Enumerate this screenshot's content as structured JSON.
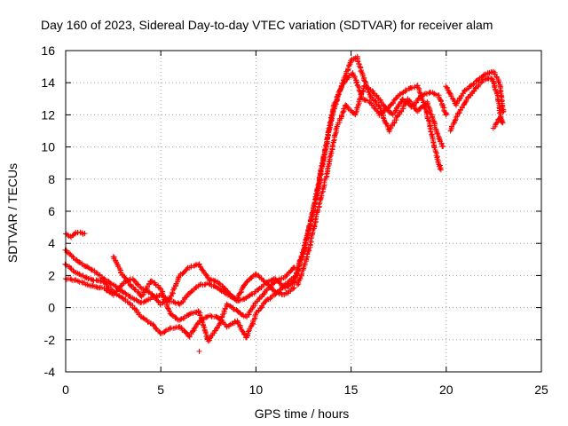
{
  "chart_data": {
    "type": "scatter",
    "title": "Day 160 of 2023, Sidereal Day-to-day VTEC variation (SDTVAR) for receiver alam",
    "xlabel": "GPS time / hours",
    "ylabel": "SDTVAR / TECUs",
    "xlim": [
      0,
      25
    ],
    "ylim": [
      -4,
      16
    ],
    "xticks": [
      0,
      5,
      10,
      15,
      20,
      25
    ],
    "yticks": [
      -4,
      -2,
      0,
      2,
      4,
      6,
      8,
      10,
      12,
      14,
      16
    ],
    "xtick_labels": [
      "0",
      "5",
      "10",
      "15",
      "20",
      "25"
    ],
    "ytick_labels": [
      "-4",
      "-2",
      "0",
      "2",
      "4",
      "6",
      "8",
      "10",
      "12",
      "14",
      "16"
    ],
    "grid": true,
    "marker": "+",
    "color": "#ff0000",
    "series": [
      {
        "name": "SDTVAR",
        "tracks": [
          [
            [
              0.0,
              4.6
            ],
            [
              0.3,
              4.4
            ],
            [
              0.6,
              4.7
            ],
            [
              1.0,
              4.6
            ]
          ],
          [
            [
              0.0,
              3.6
            ],
            [
              0.5,
              3.0
            ],
            [
              1.0,
              2.6
            ],
            [
              1.5,
              2.3
            ],
            [
              2.0,
              1.8
            ],
            [
              2.5,
              1.4
            ],
            [
              3.0,
              1.0
            ],
            [
              3.5,
              0.6
            ],
            [
              4.0,
              0.3
            ],
            [
              4.5,
              0.6
            ],
            [
              5.0,
              0.8
            ],
            [
              5.5,
              0.4
            ],
            [
              6.0,
              0.2
            ],
            [
              6.5,
              0.9
            ],
            [
              7.0,
              1.4
            ],
            [
              7.5,
              1.5
            ],
            [
              8.0,
              1.2
            ],
            [
              8.5,
              0.8
            ],
            [
              9.0,
              0.5
            ],
            [
              9.5,
              1.6
            ],
            [
              10.0,
              2.1
            ],
            [
              10.5,
              1.6
            ],
            [
              11.0,
              1.0
            ],
            [
              11.5,
              0.8
            ],
            [
              12.0,
              1.2
            ]
          ],
          [
            [
              0.0,
              2.7
            ],
            [
              0.5,
              2.2
            ],
            [
              1.0,
              1.9
            ],
            [
              1.5,
              1.7
            ],
            [
              2.0,
              1.6
            ],
            [
              2.5,
              1.0
            ],
            [
              3.0,
              0.6
            ],
            [
              3.5,
              0.1
            ],
            [
              4.0,
              -0.6
            ],
            [
              4.5,
              -1.0
            ],
            [
              5.0,
              -1.6
            ],
            [
              5.5,
              -1.3
            ],
            [
              6.0,
              -1.2
            ],
            [
              6.5,
              -1.8
            ],
            [
              7.0,
              -0.9
            ],
            [
              7.5,
              -0.5
            ],
            [
              8.0,
              -0.6
            ],
            [
              8.5,
              -1.2
            ],
            [
              9.0,
              -0.8
            ],
            [
              9.5,
              -1.9
            ],
            [
              10.0,
              -0.4
            ],
            [
              10.5,
              0.4
            ],
            [
              11.0,
              0.8
            ],
            [
              11.5,
              1.4
            ],
            [
              12.0,
              1.9
            ]
          ],
          [
            [
              0.0,
              1.8
            ],
            [
              0.5,
              1.7
            ],
            [
              1.0,
              1.5
            ],
            [
              1.5,
              1.3
            ],
            [
              2.0,
              1.2
            ],
            [
              2.5,
              0.8
            ],
            [
              3.0,
              1.5
            ],
            [
              3.5,
              1.8
            ],
            [
              4.0,
              1.2
            ],
            [
              4.5,
              0.9
            ],
            [
              5.0,
              0.2
            ],
            [
              5.5,
              0.6
            ],
            [
              6.0,
              2.0
            ],
            [
              6.5,
              2.5
            ],
            [
              7.0,
              2.7
            ],
            [
              7.5,
              1.8
            ],
            [
              8.0,
              1.6
            ],
            [
              8.5,
              1.0
            ],
            [
              9.0,
              0.4
            ],
            [
              9.5,
              0.6
            ],
            [
              10.0,
              1.0
            ],
            [
              10.5,
              1.5
            ],
            [
              11.0,
              1.8
            ],
            [
              11.5,
              1.2
            ],
            [
              12.0,
              1.6
            ]
          ],
          [
            [
              2.5,
              3.2
            ],
            [
              3.0,
              2.0
            ],
            [
              3.5,
              1.3
            ],
            [
              4.0,
              0.7
            ],
            [
              4.5,
              1.7
            ],
            [
              5.0,
              1.2
            ],
            [
              5.5,
              -0.4
            ],
            [
              6.0,
              -0.8
            ],
            [
              6.5,
              -0.4
            ],
            [
              7.0,
              -0.2
            ],
            [
              7.5,
              -2.1
            ],
            [
              8.0,
              -1.2
            ],
            [
              8.5,
              0.2
            ],
            [
              9.0,
              -0.2
            ],
            [
              9.5,
              -0.6
            ],
            [
              10.0,
              0.3
            ],
            [
              10.5,
              1.0
            ],
            [
              11.0,
              1.6
            ],
            [
              11.5,
              1.9
            ],
            [
              12.0,
              2.5
            ]
          ],
          [
            [
              12.0,
              1.5
            ],
            [
              12.5,
              3.5
            ],
            [
              13.0,
              6.0
            ],
            [
              13.5,
              9.0
            ],
            [
              14.0,
              12.0
            ],
            [
              14.5,
              13.8
            ],
            [
              15.0,
              15.4
            ],
            [
              15.3,
              15.6
            ],
            [
              15.6,
              14.5
            ],
            [
              16.0,
              13.2
            ],
            [
              16.5,
              12.5
            ],
            [
              17.0,
              11.0
            ],
            [
              17.5,
              12.0
            ],
            [
              18.0,
              13.0
            ],
            [
              18.5,
              12.2
            ],
            [
              19.0,
              12.8
            ],
            [
              19.5,
              11.0
            ],
            [
              19.8,
              10.0
            ]
          ],
          [
            [
              12.1,
              2.0
            ],
            [
              12.6,
              4.0
            ],
            [
              13.1,
              6.5
            ],
            [
              13.6,
              9.5
            ],
            [
              14.1,
              12.6
            ],
            [
              14.6,
              14.0
            ],
            [
              15.1,
              14.6
            ],
            [
              15.6,
              13.0
            ],
            [
              16.0,
              12.8
            ],
            [
              16.5,
              12.0
            ],
            [
              17.0,
              12.5
            ],
            [
              17.5,
              13.2
            ],
            [
              18.0,
              13.6
            ],
            [
              18.5,
              13.8
            ],
            [
              19.0,
              12.0
            ],
            [
              19.5,
              9.5
            ],
            [
              19.7,
              8.6
            ]
          ],
          [
            [
              12.2,
              1.4
            ],
            [
              12.7,
              3.2
            ],
            [
              13.2,
              5.8
            ],
            [
              13.7,
              8.2
            ],
            [
              14.2,
              11.0
            ],
            [
              14.7,
              12.6
            ],
            [
              15.2,
              12.0
            ],
            [
              15.7,
              13.8
            ],
            [
              16.2,
              13.4
            ],
            [
              16.7,
              12.6
            ],
            [
              17.2,
              12.0
            ],
            [
              17.7,
              13.0
            ],
            [
              18.2,
              12.5
            ],
            [
              18.7,
              13.2
            ],
            [
              19.2,
              13.4
            ],
            [
              19.6,
              13.2
            ],
            [
              20.0,
              12.0
            ]
          ],
          [
            [
              20.0,
              13.8
            ],
            [
              20.5,
              12.6
            ],
            [
              21.0,
              13.5
            ],
            [
              21.5,
              14.0
            ],
            [
              22.0,
              14.5
            ],
            [
              22.5,
              14.7
            ],
            [
              22.8,
              14.0
            ],
            [
              23.0,
              12.2
            ]
          ],
          [
            [
              20.2,
              11.0
            ],
            [
              20.6,
              12.0
            ],
            [
              21.0,
              12.8
            ],
            [
              21.5,
              13.6
            ],
            [
              22.0,
              14.2
            ],
            [
              22.4,
              14.3
            ],
            [
              22.7,
              13.2
            ],
            [
              22.9,
              11.6
            ]
          ],
          [
            [
              22.5,
              11.2
            ],
            [
              22.8,
              11.8
            ],
            [
              23.0,
              11.5
            ]
          ],
          [
            [
              7.0,
              -2.7
            ]
          ]
        ]
      }
    ]
  }
}
